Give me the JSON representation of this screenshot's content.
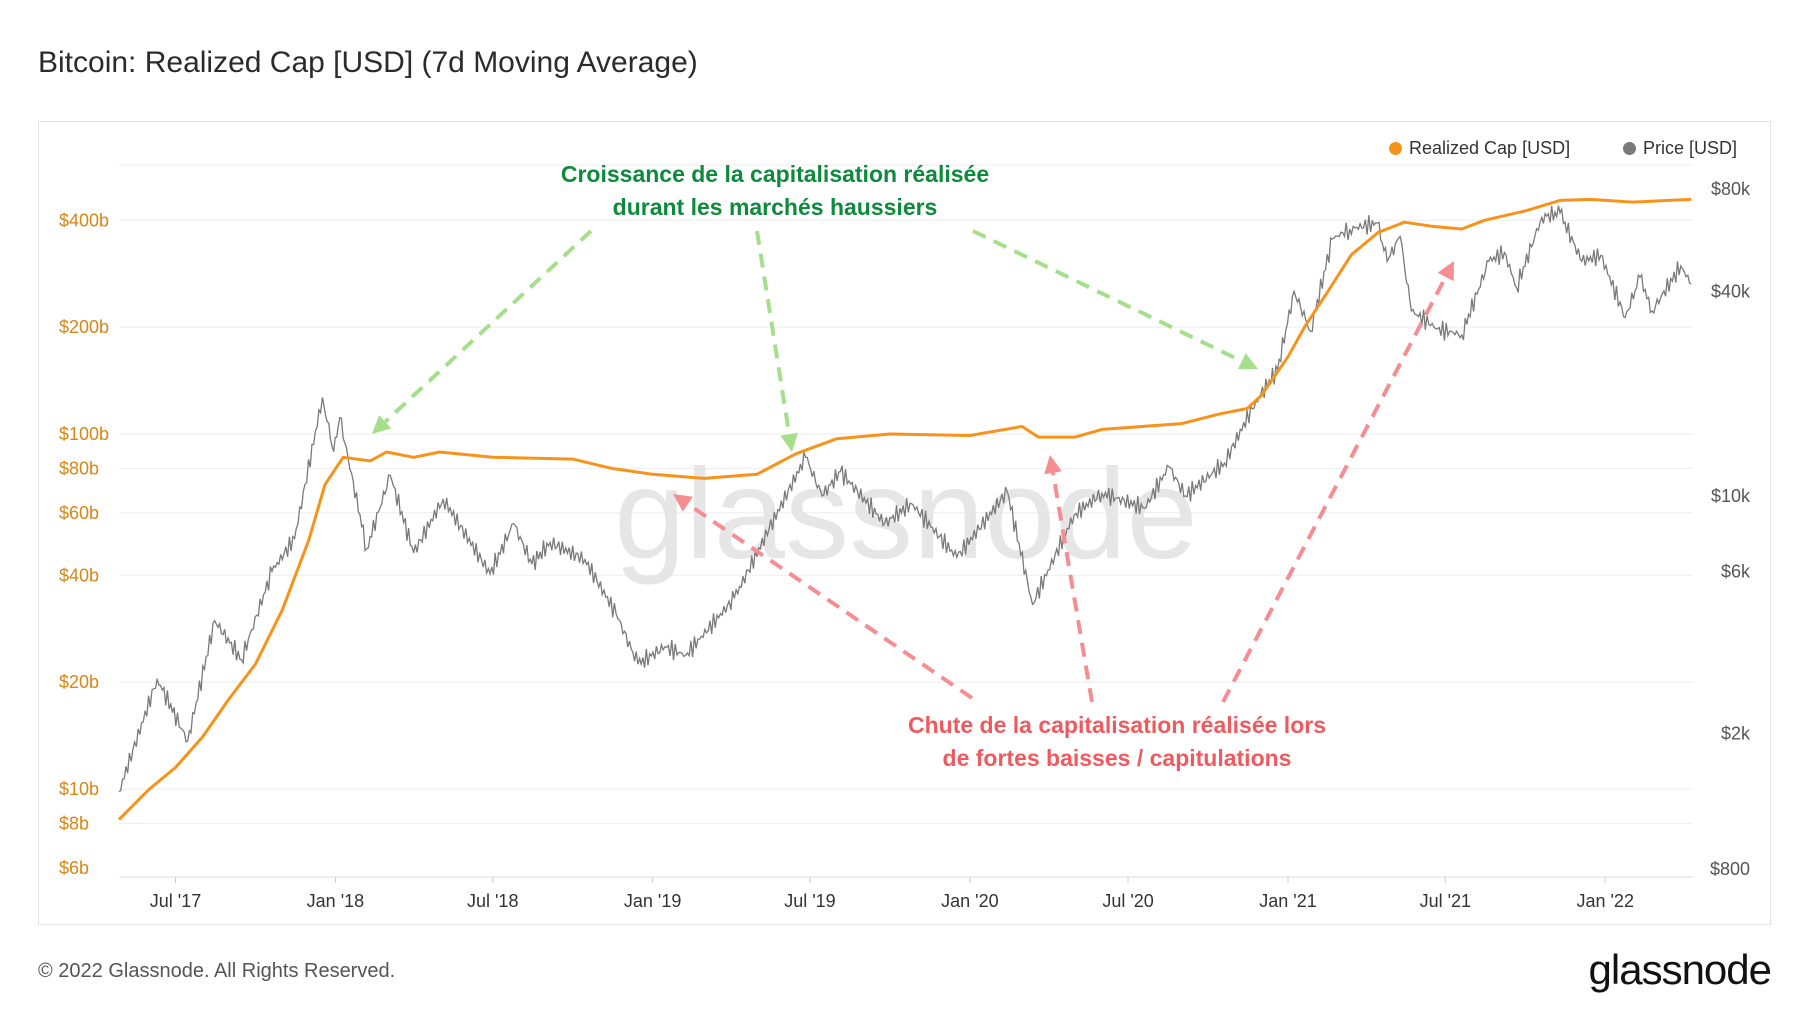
{
  "title": "Bitcoin: Realized Cap [USD] (7d Moving Average)",
  "footer": {
    "copyright": "© 2022 Glassnode. All Rights Reserved.",
    "logo": "glassnode"
  },
  "watermark": "glassnode",
  "colors": {
    "realized_cap": "#f7931a",
    "price": "#7a7a7a",
    "left_axis": "#d98613",
    "right_axis": "#555555",
    "green_text": "#0e8a3c",
    "green_arrow": "#a6df8c",
    "red_text": "#f05a5f",
    "red_arrow": "#f58d92"
  },
  "chart_data": {
    "type": "line",
    "title": "Bitcoin: Realized Cap [USD] (7d Moving Average)",
    "x_range": [
      "2017-04-27",
      "2022-04-12"
    ],
    "x_ticks": [
      "Jul '17",
      "Jan '18",
      "Jul '18",
      "Jan '19",
      "Jul '19",
      "Jan '20",
      "Jul '20",
      "Jan '21",
      "Jul '21",
      "Jan '22"
    ],
    "x_tick_dates": [
      "2017-07-01",
      "2018-01-01",
      "2018-07-01",
      "2019-01-01",
      "2019-07-01",
      "2020-01-01",
      "2020-07-01",
      "2021-01-01",
      "2021-07-01",
      "2022-01-01"
    ],
    "y_left": {
      "scale": "log",
      "unit": "billion USD",
      "range": [
        6,
        600
      ],
      "ticks": [
        6,
        8,
        10,
        20,
        40,
        60,
        80,
        100,
        200,
        400
      ],
      "tick_labels": [
        "$6b",
        "$8b",
        "$10b",
        "$20b",
        "$40b",
        "$60b",
        "$80b",
        "$100b",
        "$200b",
        "$400b"
      ]
    },
    "y_right": {
      "scale": "log",
      "unit": "USD",
      "range": [
        800,
        90000
      ],
      "ticks": [
        800,
        2000,
        6000,
        10000,
        40000,
        80000
      ],
      "tick_labels": [
        "$800",
        "$2k",
        "$6k",
        "$10k",
        "$40k",
        "$80k"
      ]
    },
    "grid": true,
    "legend_placement": "top-right",
    "series": [
      {
        "name": "Realized Cap [USD]",
        "axis": "left",
        "points": [
          [
            "2017-04-27",
            8.2
          ],
          [
            "2017-06-01",
            10
          ],
          [
            "2017-07-01",
            11.5
          ],
          [
            "2017-08-01",
            14
          ],
          [
            "2017-09-01",
            18
          ],
          [
            "2017-10-01",
            22.5
          ],
          [
            "2017-11-01",
            32
          ],
          [
            "2017-12-01",
            50
          ],
          [
            "2017-12-20",
            72
          ],
          [
            "2018-01-10",
            86
          ],
          [
            "2018-02-10",
            84
          ],
          [
            "2018-03-01",
            89
          ],
          [
            "2018-04-01",
            86
          ],
          [
            "2018-05-01",
            89
          ],
          [
            "2018-07-01",
            86
          ],
          [
            "2018-10-01",
            85
          ],
          [
            "2018-11-15",
            80
          ],
          [
            "2019-01-01",
            77
          ],
          [
            "2019-03-01",
            75
          ],
          [
            "2019-05-01",
            77
          ],
          [
            "2019-06-15",
            88
          ],
          [
            "2019-08-01",
            97
          ],
          [
            "2019-10-01",
            100
          ],
          [
            "2020-01-01",
            99
          ],
          [
            "2020-03-01",
            105
          ],
          [
            "2020-03-20",
            98
          ],
          [
            "2020-05-01",
            98
          ],
          [
            "2020-06-01",
            103
          ],
          [
            "2020-09-01",
            107
          ],
          [
            "2020-10-15",
            114
          ],
          [
            "2020-11-15",
            118
          ],
          [
            "2020-12-01",
            128
          ],
          [
            "2021-01-01",
            165
          ],
          [
            "2021-01-20",
            200
          ],
          [
            "2021-02-15",
            250
          ],
          [
            "2021-03-15",
            320
          ],
          [
            "2021-04-15",
            370
          ],
          [
            "2021-05-15",
            395
          ],
          [
            "2021-06-15",
            385
          ],
          [
            "2021-07-20",
            378
          ],
          [
            "2021-08-15",
            400
          ],
          [
            "2021-10-01",
            425
          ],
          [
            "2021-11-10",
            455
          ],
          [
            "2021-12-15",
            458
          ],
          [
            "2022-02-01",
            450
          ],
          [
            "2022-04-10",
            458
          ]
        ]
      },
      {
        "name": "Price [USD]",
        "axis": "right",
        "points": [
          [
            "2017-04-27",
            1350
          ],
          [
            "2017-06-10",
            2900
          ],
          [
            "2017-07-15",
            1900
          ],
          [
            "2017-08-15",
            4300
          ],
          [
            "2017-09-15",
            3300
          ],
          [
            "2017-10-20",
            6000
          ],
          [
            "2017-11-15",
            7500
          ],
          [
            "2017-12-17",
            19500
          ],
          [
            "2017-12-30",
            13500
          ],
          [
            "2018-01-06",
            17000
          ],
          [
            "2018-02-06",
            7000
          ],
          [
            "2018-03-05",
            11500
          ],
          [
            "2018-04-01",
            6800
          ],
          [
            "2018-05-05",
            9800
          ],
          [
            "2018-06-28",
            5900
          ],
          [
            "2018-07-25",
            8300
          ],
          [
            "2018-08-15",
            6300
          ],
          [
            "2018-09-05",
            7300
          ],
          [
            "2018-10-15",
            6500
          ],
          [
            "2018-11-20",
            4500
          ],
          [
            "2018-12-15",
            3200
          ],
          [
            "2019-01-15",
            3600
          ],
          [
            "2019-02-08",
            3400
          ],
          [
            "2019-04-05",
            5000
          ],
          [
            "2019-05-15",
            8000
          ],
          [
            "2019-06-26",
            13000
          ],
          [
            "2019-07-15",
            10000
          ],
          [
            "2019-08-05",
            11800
          ],
          [
            "2019-09-25",
            8300
          ],
          [
            "2019-10-26",
            9500
          ],
          [
            "2019-12-17",
            6600
          ],
          [
            "2020-02-13",
            10300
          ],
          [
            "2020-03-13",
            4800
          ],
          [
            "2020-04-30",
            8800
          ],
          [
            "2020-06-01",
            10200
          ],
          [
            "2020-07-20",
            9200
          ],
          [
            "2020-08-17",
            12200
          ],
          [
            "2020-09-05",
            10000
          ],
          [
            "2020-10-20",
            12500
          ],
          [
            "2020-11-25",
            19000
          ],
          [
            "2020-12-20",
            23500
          ],
          [
            "2021-01-08",
            40000
          ],
          [
            "2021-01-27",
            30500
          ],
          [
            "2021-02-21",
            57000
          ],
          [
            "2021-03-13",
            61000
          ],
          [
            "2021-04-14",
            63500
          ],
          [
            "2021-04-25",
            49000
          ],
          [
            "2021-05-10",
            58000
          ],
          [
            "2021-05-23",
            35000
          ],
          [
            "2021-06-22",
            31000
          ],
          [
            "2021-07-20",
            29800
          ],
          [
            "2021-08-20",
            49000
          ],
          [
            "2021-09-07",
            52000
          ],
          [
            "2021-09-21",
            41000
          ],
          [
            "2021-10-20",
            66000
          ],
          [
            "2021-11-10",
            68000
          ],
          [
            "2021-12-05",
            49000
          ],
          [
            "2021-12-27",
            51000
          ],
          [
            "2022-01-24",
            33500
          ],
          [
            "2022-02-10",
            44000
          ],
          [
            "2022-02-24",
            35000
          ],
          [
            "2022-03-29",
            47500
          ],
          [
            "2022-04-10",
            42000
          ]
        ]
      }
    ],
    "annotations": {
      "green": [
        "Croissance de la capitalisation réalisée",
        "durant les marchés haussiers"
      ],
      "red": [
        "Chute de la capitalisation réalisée lors",
        "de fortes baisses / capitulations"
      ]
    }
  }
}
